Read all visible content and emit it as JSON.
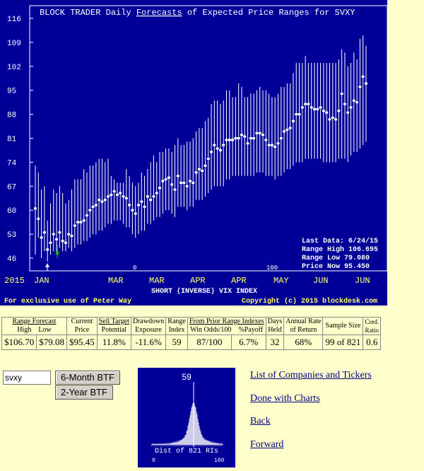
{
  "chart": {
    "title_prefix": "BLOCK TRADER Daily ",
    "title_link": "Forecasts",
    "title_suffix": " of Expected Price Ranges for  SVXY",
    "info": {
      "last_data": "Last Data: 6/24/15",
      "range_high": "Range High 106.695",
      "range_low": "Range Low   79.080",
      "price_now": "Price Now   95.450"
    },
    "year_label": "2015",
    "months": [
      "JAN",
      "MAR",
      "MAR",
      "APR",
      "APR",
      "MAY",
      "JUN",
      "JUN"
    ],
    "marker_zero": "0",
    "marker_hundred": "100",
    "subtitle": "SHORT (INVERSE) VIX INDEX",
    "footer_left": "For exclusive use of Peter Way",
    "footer_right": "Copyright (c) 2015 blockdesk.com"
  },
  "chart_data": {
    "type": "range",
    "ylim": [
      46,
      116
    ],
    "yticks": [
      116,
      109,
      102,
      95,
      88,
      81,
      74,
      67,
      60,
      53,
      46
    ],
    "mid": [
      60.5,
      57.5,
      52,
      53.5,
      48.5,
      50.5,
      53,
      51.5,
      53.5,
      51,
      50.5,
      53,
      52.5,
      55.5,
      56.5,
      56.5,
      57,
      58.5,
      60,
      61,
      61.5,
      63,
      62.5,
      63,
      64,
      64.5,
      65.5,
      64.5,
      65,
      64,
      63.5,
      61.5,
      60,
      59,
      61.5,
      62.5,
      61,
      64,
      63,
      64,
      65,
      66.5,
      68.5,
      69,
      69.5,
      67.5,
      66,
      70,
      68,
      68,
      67,
      68.5,
      68,
      71,
      72,
      71.5,
      73,
      75,
      77,
      79,
      78,
      77.5,
      79,
      80.5,
      80.5,
      80.5,
      81,
      81,
      82,
      81.5,
      79.5,
      81,
      81,
      82.5,
      82.5,
      82,
      80.5,
      79,
      79,
      78.5,
      79.5,
      81,
      83,
      83.5,
      84,
      86,
      88,
      88,
      90,
      91,
      91,
      90,
      89.5,
      89.5,
      90,
      89,
      88.5,
      86.5,
      87,
      86.5,
      89,
      94,
      91,
      88.5,
      90,
      92,
      91.5,
      96,
      99,
      97
    ],
    "high": [
      73,
      71,
      66,
      67,
      57,
      62,
      66,
      65,
      67,
      65,
      62,
      63,
      66,
      69,
      69,
      69,
      72,
      71,
      73,
      73,
      74,
      75,
      75,
      74,
      75,
      70,
      69,
      68,
      68,
      68,
      72,
      70,
      68,
      67,
      68,
      71,
      70,
      72,
      74,
      76,
      74,
      77,
      77,
      78,
      78,
      77,
      79,
      81,
      79,
      79,
      80,
      80,
      81,
      83,
      84,
      84,
      86,
      87,
      91,
      92,
      92,
      91,
      92,
      95,
      95,
      93,
      93,
      97,
      96,
      93,
      93,
      94,
      94,
      95,
      96,
      95,
      95,
      94,
      93,
      93,
      94,
      96,
      96,
      97,
      97,
      100,
      103,
      103,
      103,
      105,
      103,
      103,
      103,
      103,
      103,
      103,
      103,
      103,
      103,
      103,
      104,
      107,
      106,
      102,
      103,
      106,
      104,
      110,
      111,
      108
    ],
    "low": [
      47,
      52,
      46,
      48,
      45,
      47,
      48,
      47,
      49,
      48,
      48,
      49,
      48,
      49,
      50,
      50,
      51,
      51,
      52,
      53,
      53,
      54,
      54,
      55,
      56,
      56,
      57,
      57,
      57,
      56,
      55,
      55,
      53,
      52,
      53,
      54,
      54,
      56,
      56,
      57,
      58,
      58,
      59,
      60,
      60,
      59,
      58,
      61,
      61,
      61,
      60,
      61,
      61,
      63,
      63,
      63,
      64,
      65,
      66,
      67,
      67,
      67,
      67,
      69,
      69,
      70,
      70,
      70,
      70,
      70,
      70,
      70,
      70,
      71,
      71,
      71,
      70,
      70,
      70,
      69,
      70,
      70,
      71,
      72,
      72,
      73,
      74,
      74,
      74,
      75,
      75,
      75,
      75,
      75,
      75,
      74,
      74,
      74,
      74,
      74,
      75,
      75,
      75,
      74,
      76,
      77,
      77,
      78,
      79,
      80
    ]
  },
  "table": {
    "headers": {
      "range_forecast": "Range Forecast",
      "high": "High",
      "low": "Low",
      "current_price": [
        "Current",
        "Price"
      ],
      "sell_target": [
        "Sell Target",
        "Potential"
      ],
      "drawdown": [
        "Drawdown",
        "Exposure"
      ],
      "range_index": [
        "Range",
        "Index"
      ],
      "prior": "From Prior Range Indexes",
      "win_odds": "Win Odds/100",
      "payoff": "%Payoff",
      "days_held": [
        "Days",
        "Held"
      ],
      "annual_rate": [
        "Annual Rate",
        "of Return"
      ],
      "sample_size": "Sample Size",
      "cred_ratio": [
        "Cred.",
        "Ratio"
      ]
    },
    "values": {
      "high": "$106.70",
      "low": "$79.08",
      "current": "$95.45",
      "sell_target": "11.8%",
      "drawdown": "-11.6%",
      "range_index": "59",
      "win_odds": "87/100",
      "payoff": "6.7%",
      "days_held": "32",
      "annual_rate": "68%",
      "sample_size": "99 of 821",
      "cred_ratio": "0.6"
    }
  },
  "controls": {
    "ticker_value": "svxy",
    "btn_6month": "6-Month BTF",
    "btn_2year": "2-Year BTF"
  },
  "histogram": {
    "value_label": "59",
    "dist_label": "Dist of 821 RIs",
    "axis_min": "0",
    "axis_max": "100",
    "current_index": 59
  },
  "links": {
    "companies": "List of Companies and Tickers",
    "done": "Done with Charts",
    "back": "Back",
    "forward": "Forward"
  }
}
